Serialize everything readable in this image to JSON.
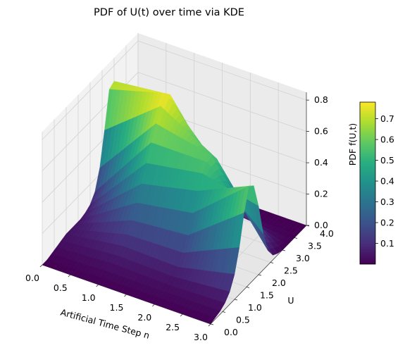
{
  "chart_data": {
    "type": "surface",
    "title": "PDF of U(t) over time via KDE",
    "xlabel": "Artificial Time Step n",
    "ylabel": "U",
    "zlabel": "PDF f(U,t)",
    "xlim": [
      0,
      3
    ],
    "ylim": [
      0,
      4
    ],
    "zlim": [
      0,
      0.85
    ],
    "x_ticks": [
      "0.0",
      "0.5",
      "1.0",
      "1.5",
      "2.0",
      "2.5",
      "3.0"
    ],
    "y_ticks": [
      "0.0",
      "0.5",
      "1.0",
      "1.5",
      "2.0",
      "2.5",
      "3.0",
      "3.5",
      "4.0"
    ],
    "z_ticks": [
      "0.0",
      "0.2",
      "0.4",
      "0.6",
      "0.8"
    ],
    "colormap": "viridis",
    "colorbar": {
      "range": [
        0.0,
        0.78
      ],
      "ticks": [
        "0.1",
        "0.2",
        "0.3",
        "0.4",
        "0.5",
        "0.6",
        "0.7"
      ]
    },
    "x": [
      0,
      1,
      2,
      3
    ],
    "u": [
      0.0,
      0.2,
      0.4,
      0.6,
      0.8,
      1.0,
      1.2,
      1.4,
      1.6,
      1.8,
      2.0,
      2.2,
      2.4,
      2.6,
      2.8,
      3.0,
      3.2,
      3.4,
      3.6,
      3.8,
      4.0
    ],
    "z": [
      [
        0.0,
        0.0,
        0.01,
        0.02,
        0.03,
        0.04,
        0.04,
        0.04,
        0.04,
        0.05,
        0.07,
        0.12,
        0.24,
        0.45,
        0.68,
        0.7,
        0.48,
        0.2,
        0.05,
        0.01,
        0.0
      ],
      [
        0.0,
        0.01,
        0.02,
        0.04,
        0.06,
        0.09,
        0.13,
        0.19,
        0.27,
        0.36,
        0.46,
        0.56,
        0.65,
        0.73,
        0.78,
        0.74,
        0.55,
        0.28,
        0.08,
        0.02,
        0.0
      ],
      [
        0.0,
        0.01,
        0.02,
        0.03,
        0.05,
        0.08,
        0.14,
        0.22,
        0.33,
        0.44,
        0.52,
        0.56,
        0.57,
        0.52,
        0.4,
        0.25,
        0.11,
        0.04,
        0.01,
        0.0,
        0.0
      ],
      [
        0.0,
        0.01,
        0.02,
        0.04,
        0.08,
        0.16,
        0.3,
        0.49,
        0.63,
        0.6,
        0.44,
        0.23,
        0.09,
        0.03,
        0.01,
        0.0,
        0.0,
        0.0,
        0.0,
        0.0,
        0.0
      ]
    ]
  }
}
